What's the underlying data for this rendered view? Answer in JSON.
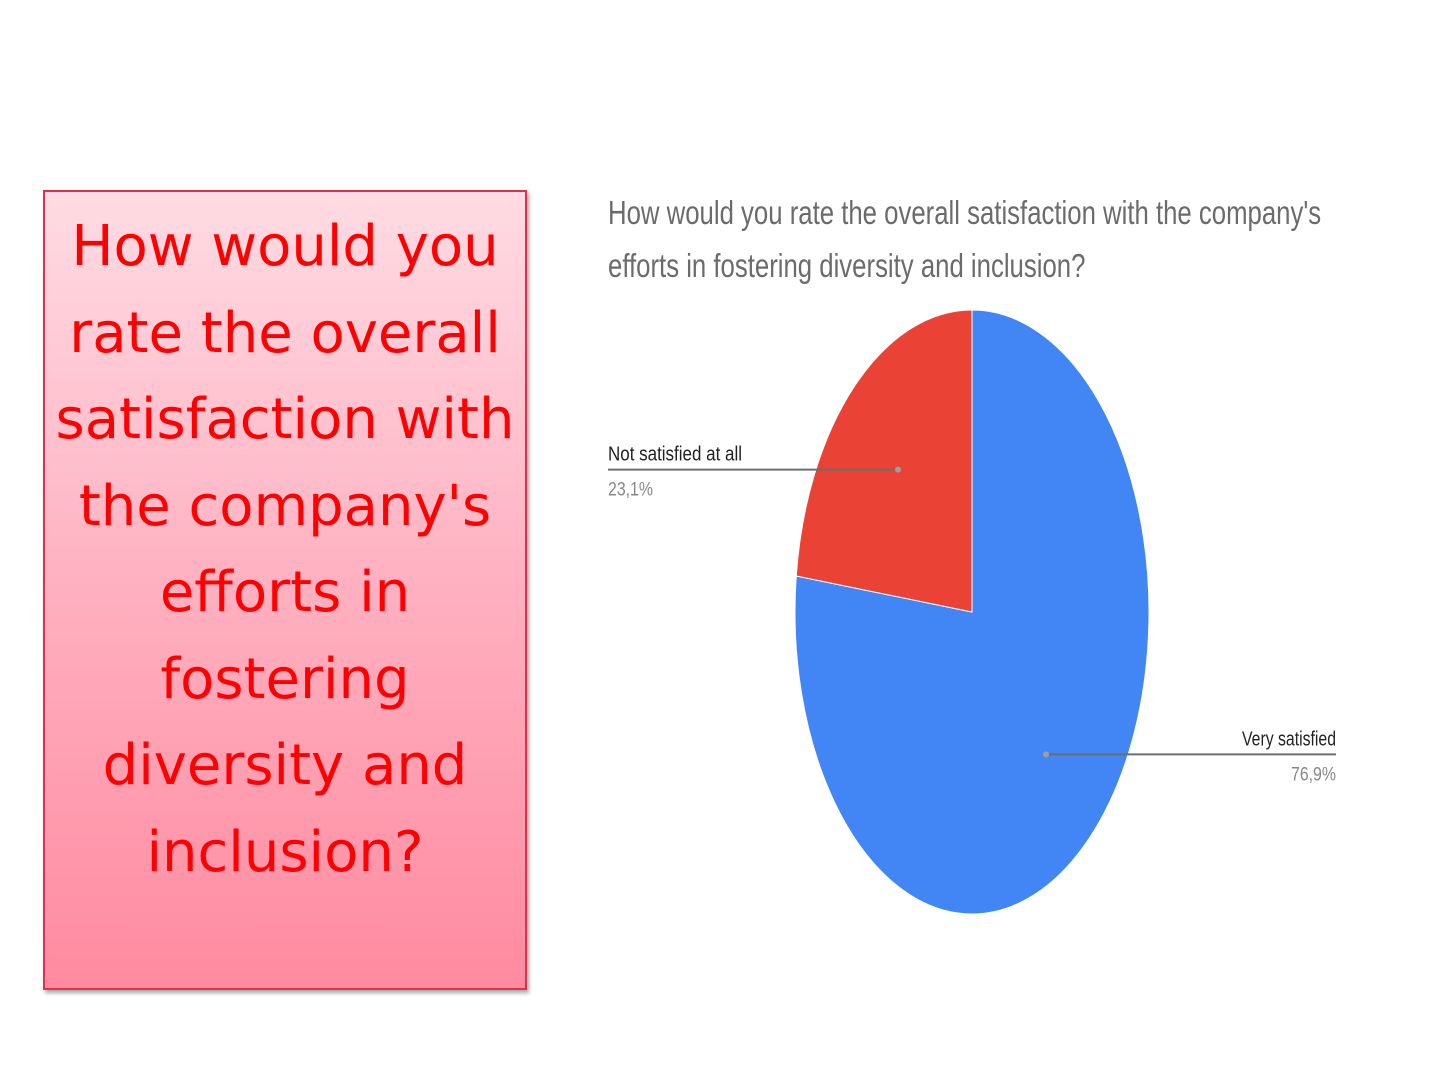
{
  "question_box": {
    "text": "How would you rate the overall satisfaction with the company's efforts in fostering diversity and inclusion?"
  },
  "chart_data": {
    "type": "pie",
    "title": "How would you rate the overall satisfaction with the company's efforts in fostering diversity and inclusion?",
    "slices": [
      {
        "label": "Very satisfied",
        "value": 76.9,
        "value_label": "76,9%",
        "color": "#4285f4"
      },
      {
        "label": "Not satisfied at all",
        "value": 23.1,
        "value_label": "23,1%",
        "color": "#ea4335"
      }
    ],
    "legend": "none",
    "labels": "outside with leader lines"
  }
}
